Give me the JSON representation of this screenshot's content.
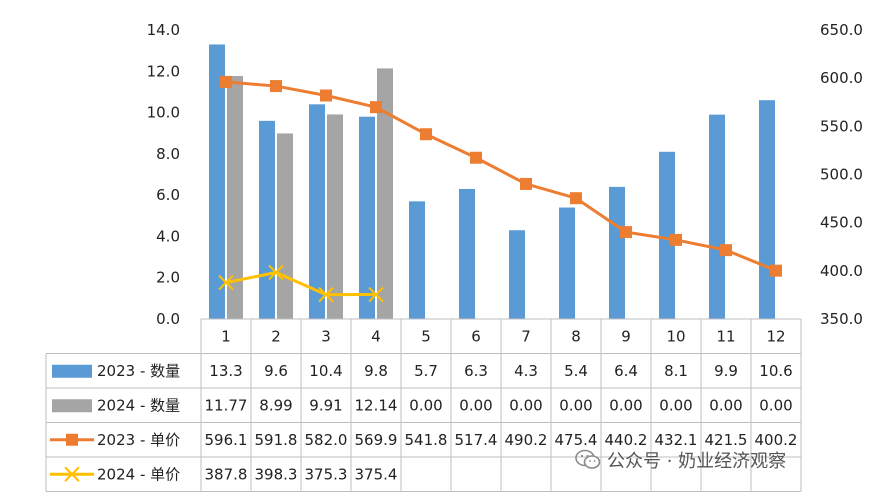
{
  "chart_data": {
    "type": "bar",
    "categories": [
      "1",
      "2",
      "3",
      "4",
      "5",
      "6",
      "7",
      "8",
      "9",
      "10",
      "11",
      "12"
    ],
    "left_axis": {
      "ticks": [
        "0.0",
        "2.0",
        "4.0",
        "6.0",
        "8.0",
        "10.0",
        "12.0",
        "14.0"
      ],
      "range": [
        0,
        14
      ]
    },
    "right_axis": {
      "ticks": [
        "350.0",
        "400.0",
        "450.0",
        "500.0",
        "550.0",
        "600.0",
        "650.0"
      ],
      "range": [
        350,
        650
      ]
    },
    "series": [
      {
        "name": "2023 - 数量",
        "kind": "bar",
        "axis": "left",
        "color": "#5B9BD5",
        "values": [
          13.3,
          9.6,
          10.4,
          9.8,
          5.7,
          6.3,
          4.3,
          5.4,
          6.4,
          8.1,
          9.9,
          10.6
        ],
        "labels": [
          "13.3",
          "9.6",
          "10.4",
          "9.8",
          "5.7",
          "6.3",
          "4.3",
          "5.4",
          "6.4",
          "8.1",
          "9.9",
          "10.6"
        ]
      },
      {
        "name": "2024 - 数量",
        "kind": "bar",
        "axis": "left",
        "color": "#A5A5A5",
        "values": [
          11.77,
          8.99,
          9.91,
          12.14,
          0,
          0,
          0,
          0,
          0,
          0,
          0,
          0
        ],
        "labels": [
          "11.77",
          "8.99",
          "9.91",
          "12.14",
          "0.00",
          "0.00",
          "0.00",
          "0.00",
          "0.00",
          "0.00",
          "0.00",
          "0.00"
        ]
      },
      {
        "name": "2023 - 单价",
        "kind": "line",
        "axis": "right",
        "color": "#ED7D31",
        "marker": "square",
        "values": [
          596.1,
          591.8,
          582.0,
          569.9,
          541.8,
          517.4,
          490.2,
          475.4,
          440.2,
          432.1,
          421.5,
          400.2
        ],
        "labels": [
          "596.1",
          "591.8",
          "582.0",
          "569.9",
          "541.8",
          "517.4",
          "490.2",
          "475.4",
          "440.2",
          "432.1",
          "421.5",
          "400.2"
        ]
      },
      {
        "name": "2024 - 单价",
        "kind": "line",
        "axis": "right",
        "color": "#FFC000",
        "marker": "x",
        "values": [
          387.8,
          398.3,
          375.3,
          375.4,
          null,
          null,
          null,
          null,
          null,
          null,
          null,
          null
        ],
        "labels": [
          "387.8",
          "398.3",
          "375.3",
          "375.4",
          "",
          "",
          "",
          "",
          "",
          "",
          "",
          ""
        ]
      }
    ],
    "grid": false,
    "legend": "data-table"
  },
  "watermark": {
    "text": "公众号 · 奶业经济观察"
  }
}
